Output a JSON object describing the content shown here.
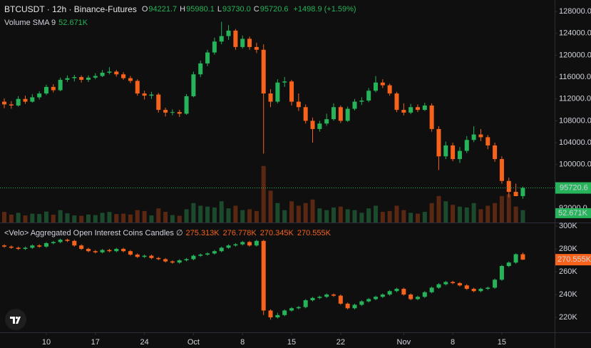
{
  "chart_data": [
    {
      "type": "candlestick",
      "title": "BTCUSDT · 12h · Binance-Futures",
      "ohlc_legend": [
        {
          "label": "O",
          "value": "94221.7"
        },
        {
          "label": "H",
          "value": "95980.1"
        },
        {
          "label": "L",
          "value": "93730.0"
        },
        {
          "label": "C",
          "value": "95720.6"
        }
      ],
      "change": "+1498.9 (+1.59%)",
      "volume_sma": {
        "label": "Volume SMA 9",
        "value": 52.671,
        "value_label": "52.671K"
      },
      "up_color": "#26b35a",
      "down_color": "#f7631b",
      "volume_up_color": "#1c4a2c",
      "volume_down_color": "#5a2713",
      "grid": false,
      "ylim": [
        89400,
        130100
      ],
      "yticks": [
        {
          "value": 92000,
          "label": "92000.0"
        },
        {
          "value": 100000,
          "label": "100000.0"
        },
        {
          "value": 104000,
          "label": "104000.0"
        },
        {
          "value": 108000,
          "label": "108000.0"
        },
        {
          "value": 112000,
          "label": "112000.0"
        },
        {
          "value": 116000,
          "label": "116000.0"
        },
        {
          "value": 120000,
          "label": "120000.0"
        },
        {
          "value": 124000,
          "label": "124000.0"
        },
        {
          "value": 128000,
          "label": "128000.0"
        }
      ],
      "volume_ylim": [
        0,
        1260
      ],
      "candles": [
        [
          111500,
          112100,
          110300,
          111000
        ],
        [
          111000,
          111600,
          110200,
          110800
        ],
        [
          110800,
          112500,
          110600,
          112000
        ],
        [
          112000,
          112600,
          111100,
          111500
        ],
        [
          111500,
          112900,
          111300,
          112300
        ],
        [
          112300,
          113400,
          111900,
          113000
        ],
        [
          113000,
          114600,
          112700,
          114200
        ],
        [
          114200,
          114700,
          113200,
          113600
        ],
        [
          113600,
          115900,
          113400,
          115500
        ],
        [
          115500,
          116300,
          115100,
          115800
        ],
        [
          115800,
          116400,
          115200,
          116000
        ],
        [
          116000,
          116300,
          115000,
          115500
        ],
        [
          115500,
          116300,
          115100,
          115900
        ],
        [
          115900,
          116700,
          115600,
          116200
        ],
        [
          116200,
          117300,
          116000,
          116800
        ],
        [
          116800,
          117800,
          116500,
          117000
        ],
        [
          117000,
          117300,
          116100,
          116500
        ],
        [
          116500,
          116900,
          115500,
          115800
        ],
        [
          115800,
          116200,
          114900,
          115300
        ],
        [
          115300,
          115600,
          112600,
          113000
        ],
        [
          113000,
          113500,
          111900,
          112600
        ],
        [
          112600,
          113300,
          112000,
          112800
        ],
        [
          112800,
          113100,
          109500,
          110000
        ],
        [
          110000,
          110400,
          108800,
          109500
        ],
        [
          109500,
          110100,
          109000,
          109600
        ],
        [
          109600,
          110000,
          108700,
          109300
        ],
        [
          109300,
          112900,
          109100,
          112500
        ],
        [
          112500,
          117000,
          112300,
          116500
        ],
        [
          116500,
          119000,
          116000,
          118500
        ],
        [
          118500,
          121000,
          118000,
          120500
        ],
        [
          120500,
          123200,
          120100,
          122500
        ],
        [
          122500,
          126100,
          122000,
          123500
        ],
        [
          123500,
          125500,
          122800,
          124500
        ],
        [
          124500,
          124800,
          121000,
          121500
        ],
        [
          121500,
          123600,
          121200,
          123000
        ],
        [
          123000,
          123400,
          121000,
          121500
        ],
        [
          121500,
          122300,
          120400,
          121000
        ],
        [
          121000,
          122000,
          102000,
          113000
        ],
        [
          113000,
          113800,
          110500,
          111500
        ],
        [
          111500,
          115600,
          111200,
          115000
        ],
        [
          115000,
          116000,
          114200,
          115200
        ],
        [
          115200,
          115500,
          110800,
          111500
        ],
        [
          111500,
          113000,
          109800,
          110500
        ],
        [
          110500,
          111000,
          107500,
          108000
        ],
        [
          108000,
          108600,
          104000,
          106500
        ],
        [
          106500,
          108000,
          106000,
          107500
        ],
        [
          107500,
          109300,
          107100,
          108300
        ],
        [
          108300,
          111200,
          108000,
          110500
        ],
        [
          110500,
          110800,
          107600,
          108000
        ],
        [
          108000,
          110600,
          107800,
          110200
        ],
        [
          110200,
          112000,
          109900,
          111500
        ],
        [
          111500,
          112300,
          110900,
          111700
        ],
        [
          111700,
          114000,
          111400,
          113500
        ],
        [
          113500,
          116200,
          113200,
          115000
        ],
        [
          115000,
          115600,
          114000,
          114500
        ],
        [
          114500,
          114800,
          112600,
          113000
        ],
        [
          113000,
          113300,
          109600,
          110000
        ],
        [
          110000,
          111200,
          109000,
          109500
        ],
        [
          109500,
          111100,
          109200,
          110500
        ],
        [
          110500,
          111000,
          109600,
          110000
        ],
        [
          110000,
          111300,
          109800,
          110800
        ],
        [
          110800,
          111200,
          106000,
          106500
        ],
        [
          106500,
          107000,
          99000,
          101500
        ],
        [
          101500,
          104200,
          101000,
          103500
        ],
        [
          103500,
          104000,
          100600,
          101000
        ],
        [
          101000,
          103200,
          100300,
          102500
        ],
        [
          102500,
          105200,
          102100,
          104500
        ],
        [
          104500,
          107000,
          104100,
          105500
        ],
        [
          105500,
          106500,
          104300,
          105000
        ],
        [
          105000,
          105400,
          102800,
          103500
        ],
        [
          103500,
          104000,
          100500,
          101000
        ],
        [
          101000,
          101500,
          96500,
          97000
        ],
        [
          97000,
          97600,
          94000,
          95000
        ],
        [
          95000,
          96500,
          94300,
          94221.7
        ],
        [
          94221.7,
          95980.1,
          93730,
          95720.6
        ]
      ],
      "volume": [
        60,
        45,
        55,
        40,
        50,
        48,
        62,
        44,
        70,
        52,
        40,
        38,
        45,
        42,
        55,
        60,
        48,
        50,
        45,
        70,
        65,
        40,
        80,
        60,
        42,
        38,
        75,
        110,
        95,
        90,
        85,
        120,
        80,
        95,
        70,
        75,
        65,
        320,
        180,
        110,
        70,
        120,
        95,
        110,
        130,
        80,
        70,
        85,
        90,
        75,
        70,
        55,
        80,
        95,
        60,
        65,
        95,
        70,
        55,
        50,
        60,
        110,
        150,
        120,
        100,
        90,
        85,
        110,
        75,
        95,
        110,
        150,
        160,
        90,
        70
      ]
    },
    {
      "type": "candlestick",
      "title": "<Velo> Aggregated Open Interest Coins Candles ∅",
      "legend_values": [
        "275.313K",
        "276.778K",
        "270.345K",
        "270.555K"
      ],
      "up_color": "#26b35a",
      "down_color": "#f7631b",
      "grid": false,
      "ylim": [
        206.9,
        302.5
      ],
      "yticks": [
        {
          "value": 220,
          "label": "220K"
        },
        {
          "value": 240,
          "label": "240K"
        },
        {
          "value": 260,
          "label": "260K"
        },
        {
          "value": 280,
          "label": "280K"
        },
        {
          "value": 300,
          "label": "300K"
        }
      ],
      "xticks": [
        {
          "value": 6,
          "label": "10"
        },
        {
          "value": 13,
          "label": "17"
        },
        {
          "value": 20,
          "label": "24"
        },
        {
          "value": 27,
          "label": "Oct"
        },
        {
          "value": 34,
          "label": "8"
        },
        {
          "value": 41,
          "label": "15"
        },
        {
          "value": 48,
          "label": "22"
        },
        {
          "value": 57,
          "label": "Nov"
        },
        {
          "value": 64,
          "label": "8"
        },
        {
          "value": 71,
          "label": "15"
        }
      ],
      "candles": [
        [
          283,
          284,
          281,
          282
        ],
        [
          282,
          283,
          280,
          281
        ],
        [
          281,
          282,
          279,
          280
        ],
        [
          280,
          282,
          279,
          281
        ],
        [
          281,
          284,
          280,
          283
        ],
        [
          283,
          284,
          281,
          282
        ],
        [
          282,
          286,
          281,
          285
        ],
        [
          285,
          287,
          284,
          286
        ],
        [
          286,
          289,
          285,
          288
        ],
        [
          288,
          289,
          286,
          287
        ],
        [
          287,
          288,
          282,
          283
        ],
        [
          283,
          284,
          279,
          280
        ],
        [
          280,
          281,
          277,
          278
        ],
        [
          278,
          279,
          276,
          277
        ],
        [
          277,
          280,
          276,
          279
        ],
        [
          279,
          280,
          277,
          278
        ],
        [
          278,
          281,
          277,
          280
        ],
        [
          280,
          281,
          277,
          278
        ],
        [
          278,
          279,
          274,
          275
        ],
        [
          275,
          276,
          272,
          273
        ],
        [
          273,
          275,
          272,
          274
        ],
        [
          274,
          275,
          271,
          272
        ],
        [
          272,
          273,
          270,
          271
        ],
        [
          271,
          272,
          268,
          269
        ],
        [
          269,
          270,
          267,
          268
        ],
        [
          268,
          271,
          267,
          270
        ],
        [
          270,
          272,
          269,
          271
        ],
        [
          271,
          275,
          270,
          274
        ],
        [
          274,
          276,
          273,
          275
        ],
        [
          275,
          277,
          274,
          276
        ],
        [
          276,
          279,
          275,
          278
        ],
        [
          278,
          282,
          277,
          281
        ],
        [
          281,
          284,
          280,
          283
        ],
        [
          283,
          285,
          282,
          284
        ],
        [
          284,
          287,
          283,
          286
        ],
        [
          286,
          287,
          282,
          283
        ],
        [
          283,
          288,
          282,
          287
        ],
        [
          287,
          288,
          222,
          226
        ],
        [
          226,
          227,
          218,
          220
        ],
        [
          220,
          224,
          219,
          222
        ],
        [
          222,
          227,
          221,
          226
        ],
        [
          226,
          229,
          225,
          228
        ],
        [
          228,
          230,
          227,
          229
        ],
        [
          229,
          236,
          228,
          235
        ],
        [
          235,
          238,
          234,
          237
        ],
        [
          237,
          239,
          236,
          238
        ],
        [
          238,
          241,
          237,
          240
        ],
        [
          240,
          241,
          238,
          239
        ],
        [
          239,
          240,
          231,
          232
        ],
        [
          232,
          233,
          227,
          228
        ],
        [
          228,
          232,
          227,
          231
        ],
        [
          231,
          235,
          230,
          234
        ],
        [
          234,
          237,
          233,
          236
        ],
        [
          236,
          239,
          235,
          238
        ],
        [
          238,
          241,
          237,
          240
        ],
        [
          240,
          244,
          239,
          243
        ],
        [
          243,
          246,
          242,
          245
        ],
        [
          245,
          246,
          239,
          240
        ],
        [
          240,
          241,
          235,
          236
        ],
        [
          236,
          239,
          235,
          238
        ],
        [
          238,
          243,
          237,
          242
        ],
        [
          242,
          247,
          241,
          246
        ],
        [
          246,
          250,
          245,
          249
        ],
        [
          249,
          252,
          248,
          251
        ],
        [
          251,
          252,
          249,
          250
        ],
        [
          250,
          251,
          247,
          248
        ],
        [
          248,
          249,
          244,
          245
        ],
        [
          245,
          246,
          242,
          243
        ],
        [
          243,
          246,
          242,
          245
        ],
        [
          245,
          247,
          244,
          246
        ],
        [
          246,
          254,
          245,
          253
        ],
        [
          253,
          266,
          252,
          265
        ],
        [
          265,
          269,
          264,
          268
        ],
        [
          268,
          276,
          267,
          275.313
        ],
        [
          275.313,
          276.778,
          270.345,
          270.555
        ]
      ]
    }
  ]
}
